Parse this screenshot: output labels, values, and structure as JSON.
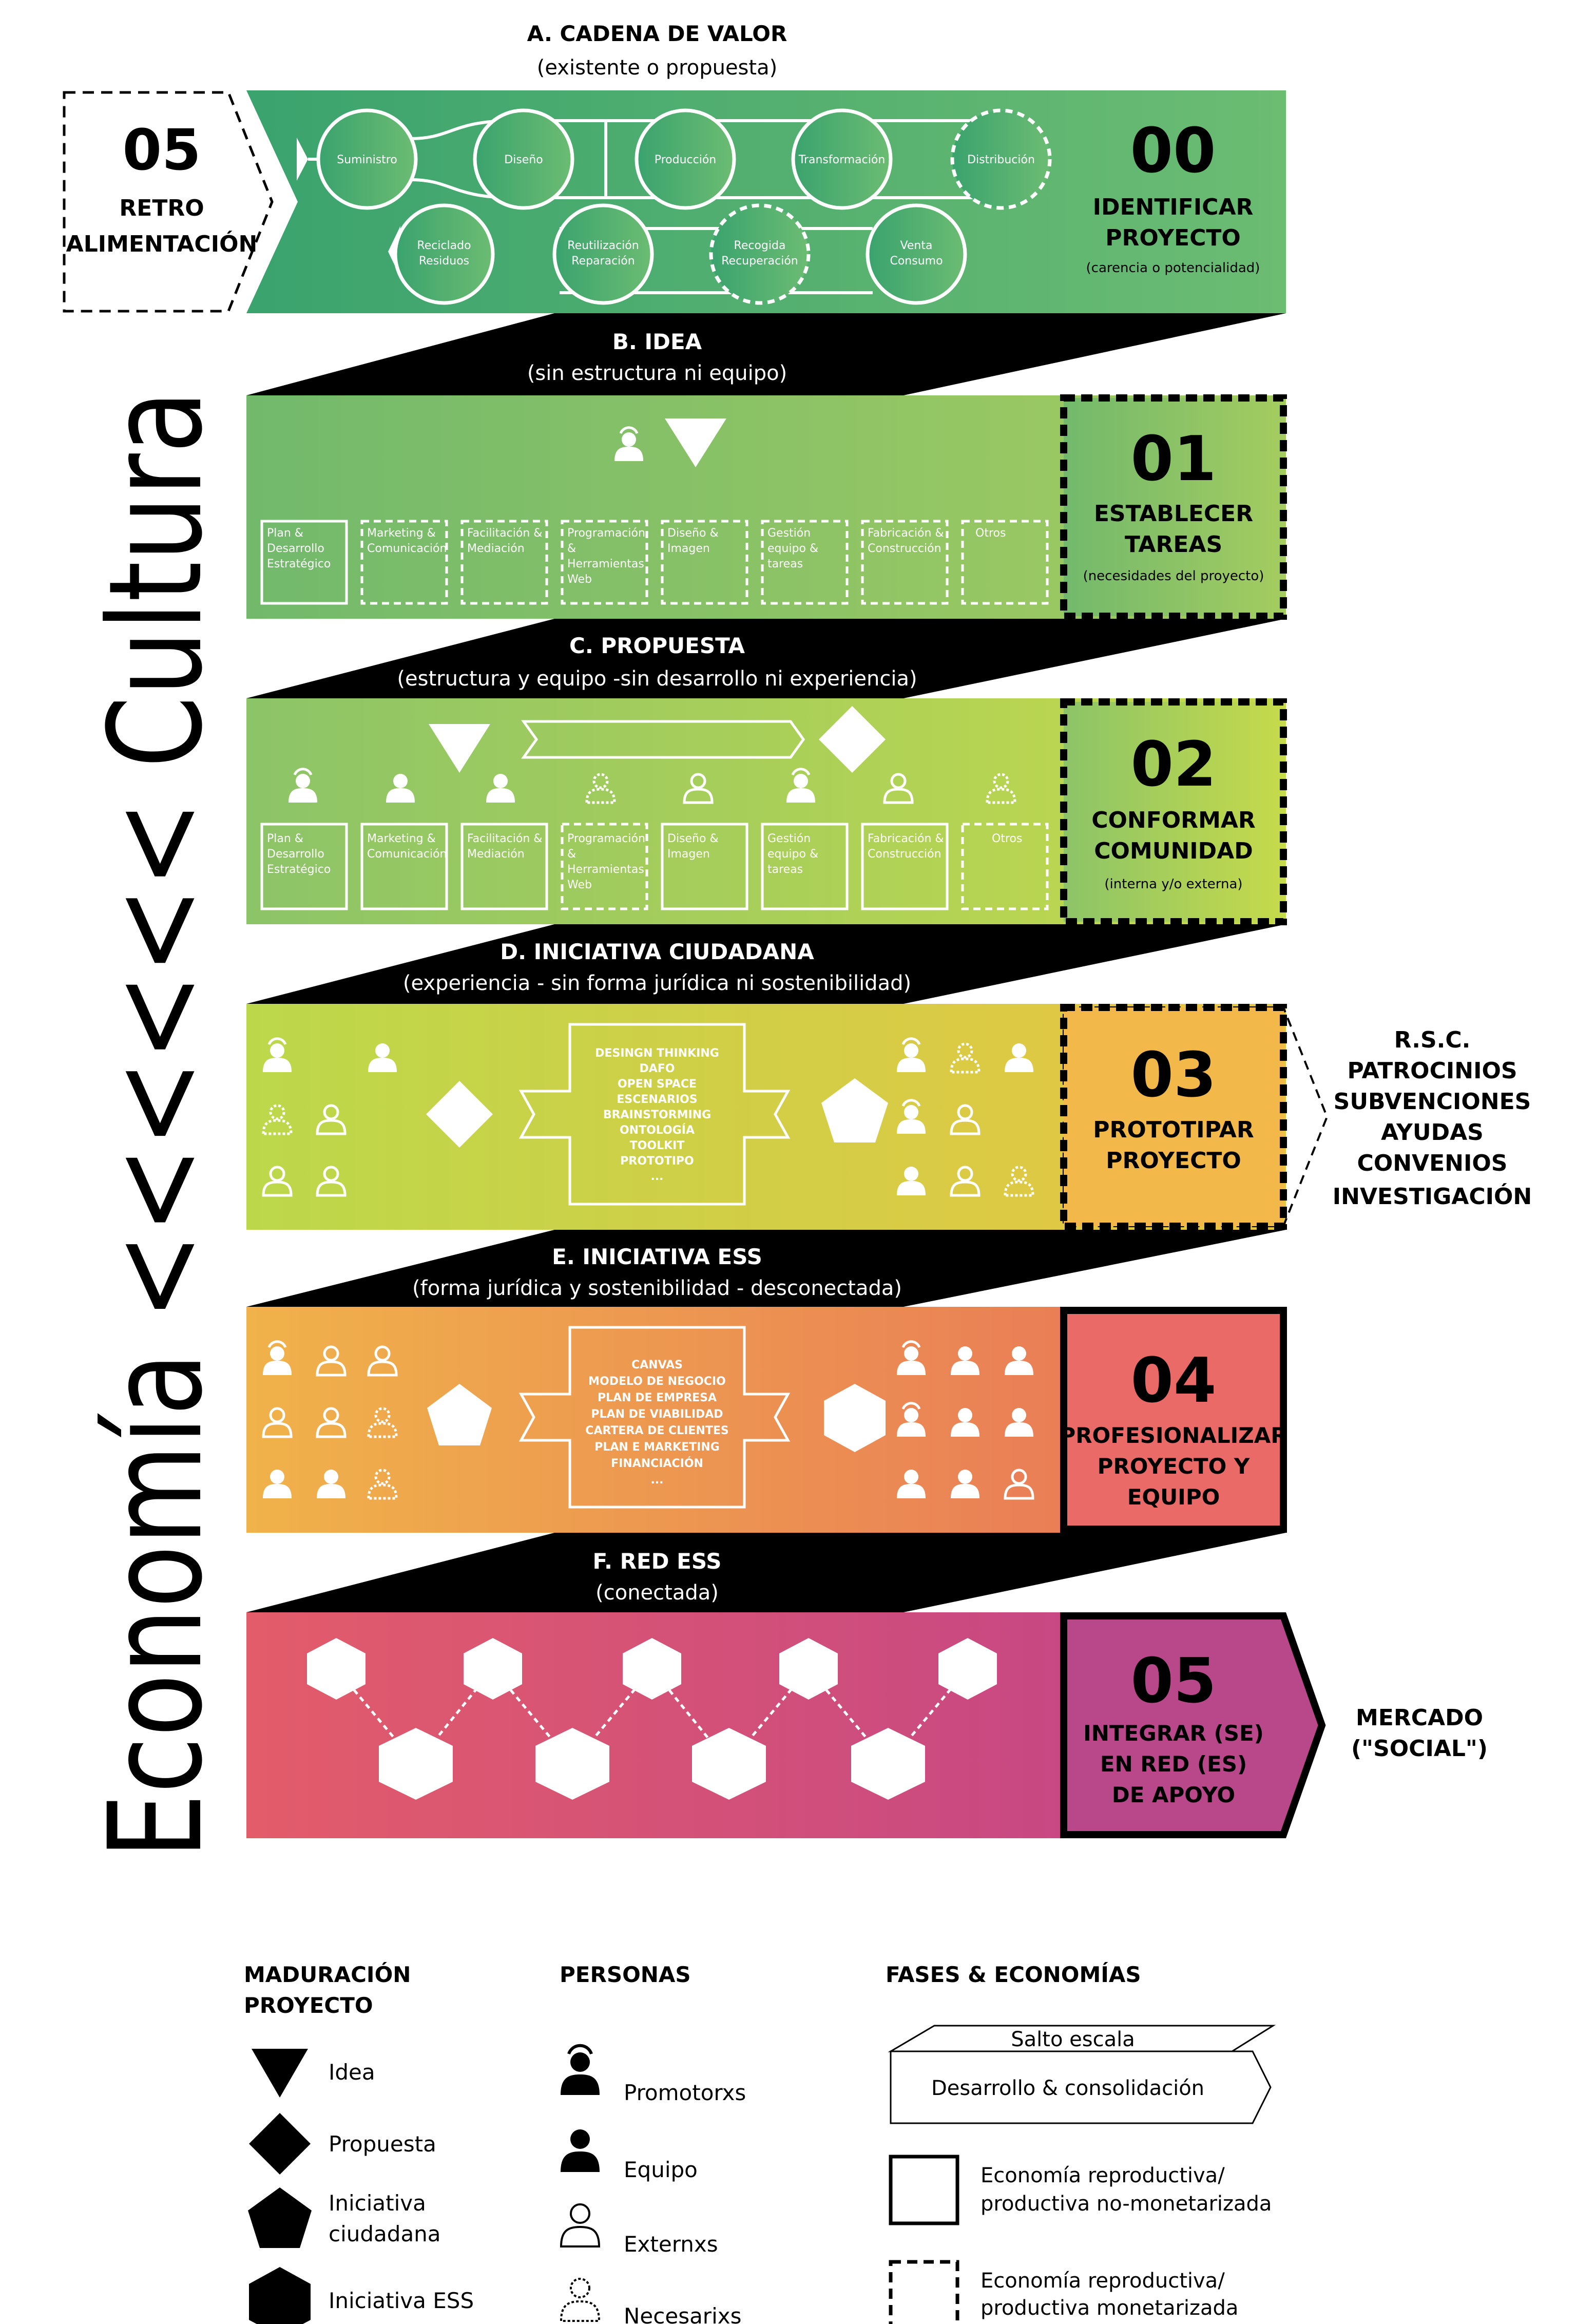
{
  "bands": [
    {
      "title": "A. CADENA DE VALOR",
      "subtitle": "(existente o propuesta)"
    },
    {
      "title": "B. IDEA",
      "subtitle": "(sin estructura ni equipo)"
    },
    {
      "title": "C. PROPUESTA",
      "subtitle": "(estructura y equipo -sin desarrollo ni experiencia)"
    },
    {
      "title": "D. INICIATIVA CIUDADANA",
      "subtitle": "(experiencia - sin forma jurídica ni sostenibilidad)"
    },
    {
      "title": "E. INICIATIVA ESS",
      "subtitle": "(forma jurídica y sostenibilidad - desconectada)"
    },
    {
      "title": "F. RED ESS",
      "subtitle": "(conectada)"
    }
  ],
  "phases": [
    {
      "num": "00",
      "label1": "IDENTIFICAR",
      "label2": "PROYECTO",
      "label3": "",
      "note": "(carencia o potencialidad)"
    },
    {
      "num": "01",
      "label1": "ESTABLECER",
      "label2": "TAREAS",
      "label3": "",
      "note": "(necesidades del proyecto)"
    },
    {
      "num": "02",
      "label1": "CONFORMAR",
      "label2": "COMUNIDAD",
      "label3": "",
      "note": "(interna y/o externa)"
    },
    {
      "num": "03",
      "label1": "PROTOTIPAR",
      "label2": "PROYECTO",
      "label3": "",
      "note": ""
    },
    {
      "num": "04",
      "label1": "PROFESIONALIZAR",
      "label2": "PROYECTO Y",
      "label3": "EQUIPO",
      "note": ""
    },
    {
      "num": "05",
      "label1": "INTEGRAR (SE)",
      "label2": "EN RED (ES)",
      "label3": "DE APOYO",
      "note": ""
    }
  ],
  "feedback": {
    "num": "05",
    "line1": "RETRO",
    "line2": "ALIMENTACIÓN"
  },
  "value_chain": {
    "top": [
      "Suministro",
      "Diseño",
      "Producción",
      "Transformación",
      "Distribución"
    ],
    "bottom": [
      [
        "Reciclado",
        "Residuos"
      ],
      [
        "Reutilización",
        "Reparación"
      ],
      [
        "Recogida",
        "Recuperación"
      ],
      [
        "Venta",
        "Consumo"
      ]
    ]
  },
  "tasks": [
    [
      "Plan &",
      "Desarrollo",
      "Estratégico"
    ],
    [
      "Marketing &",
      "Comunicación"
    ],
    [
      "Facilitación &",
      "Mediación"
    ],
    [
      "Programación",
      "&",
      "Herramientas",
      "Web"
    ],
    [
      "Diseño &",
      "Imagen"
    ],
    [
      "Gestión",
      "equipo &",
      "tareas"
    ],
    [
      "Fabricación &",
      "Construcción"
    ],
    [
      "Otros"
    ]
  ],
  "tools_d": [
    "DESINGN THINKING",
    "DAFO",
    "OPEN SPACE",
    "ESCENARIOS",
    "BRAINSTORMING",
    "ONTOLOGÍA",
    "TOOLKIT",
    "PROTOTIPO",
    "..."
  ],
  "tools_e": [
    "CANVAS",
    "MODELO DE NEGOCIO",
    "PLAN DE EMPRESA",
    "PLAN DE VIABILIDAD",
    "CARTERA DE CLIENTES",
    "PLAN E MARKETING",
    "FINANCIACIÓN",
    "..."
  ],
  "external_support": [
    "R.S.C.",
    "PATROCINIOS",
    "SUBVENCIONES",
    "AYUDAS",
    "CONVENIOS",
    "INVESTIGACIÓN"
  ],
  "market": [
    "MERCADO",
    "(\"SOCIAL\")"
  ],
  "side_title": "Economía <<<<<< Cultura",
  "legend": {
    "maduracion": {
      "title1": "MADURACIÓN",
      "title2": "PROYECTO",
      "items": [
        "Idea",
        "Propuesta",
        "Iniciativa",
        "ciudadana",
        "Iniciativa ESS"
      ]
    },
    "personas": {
      "title": "PERSONAS",
      "items": [
        "Promotorxs",
        "Equipo",
        "Externxs",
        "Necesarixs"
      ]
    },
    "fases": {
      "title": "FASES & ECONOMÍAS",
      "salto": "Salto escala",
      "desarrollo": "Desarrollo & consolidación",
      "solid": [
        "Economía  reproductiva/",
        "productiva no-monetarizada"
      ],
      "dashed": [
        "Economía  reproductiva/",
        "productiva monetarizada"
      ]
    }
  },
  "colors": {
    "a": "#4fae74",
    "b": "#8cc46a",
    "c": "#b4d45c",
    "d": "#d8dc48",
    "e": "#eda050",
    "f": "#d8557a",
    "p03": "#f2b84a",
    "p04": "#ea6a68",
    "p05": "#b8488a"
  }
}
